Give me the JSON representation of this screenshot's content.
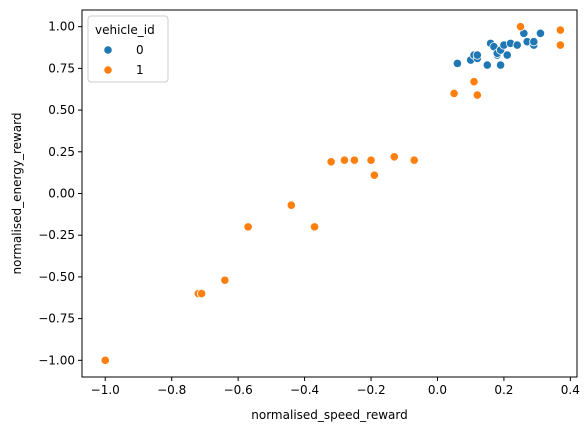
{
  "chart_data": {
    "type": "scatter",
    "title": "",
    "xlabel": "normalised_speed_reward",
    "ylabel": "normalised_energy_reward",
    "xlim": [
      -1.07,
      0.42
    ],
    "ylim": [
      -1.1,
      1.1
    ],
    "x_ticks": [
      -1.0,
      -0.8,
      -0.6,
      -0.4,
      -0.2,
      0.0,
      0.2,
      0.4
    ],
    "x_tick_labels": [
      "−1.0",
      "−0.8",
      "−0.6",
      "−0.4",
      "−0.2",
      "0.0",
      "0.2",
      "0.4"
    ],
    "y_ticks": [
      -1.0,
      -0.75,
      -0.5,
      -0.25,
      0.0,
      0.25,
      0.5,
      0.75,
      1.0
    ],
    "y_tick_labels": [
      "−1.00",
      "−0.75",
      "−0.50",
      "−0.25",
      "0.00",
      "0.25",
      "0.50",
      "0.75",
      "1.00"
    ],
    "grid": false,
    "legend": {
      "title": "vehicle_id",
      "placement": "upper-left"
    },
    "series": [
      {
        "name": "0",
        "color": "#1f77b4",
        "points": [
          [
            0.06,
            0.78
          ],
          [
            0.1,
            0.8
          ],
          [
            0.11,
            0.83
          ],
          [
            0.12,
            0.81
          ],
          [
            0.12,
            0.83
          ],
          [
            0.15,
            0.77
          ],
          [
            0.16,
            0.9
          ],
          [
            0.17,
            0.88
          ],
          [
            0.18,
            0.83
          ],
          [
            0.18,
            0.84
          ],
          [
            0.19,
            0.77
          ],
          [
            0.19,
            0.86
          ],
          [
            0.2,
            0.89
          ],
          [
            0.21,
            0.83
          ],
          [
            0.22,
            0.9
          ],
          [
            0.24,
            0.89
          ],
          [
            0.26,
            0.96
          ],
          [
            0.27,
            0.91
          ],
          [
            0.29,
            0.89
          ],
          [
            0.29,
            0.91
          ],
          [
            0.31,
            0.96
          ]
        ]
      },
      {
        "name": "1",
        "color": "#ff7f0e",
        "points": [
          [
            -1.0,
            -1.0
          ],
          [
            -0.72,
            -0.6
          ],
          [
            -0.71,
            -0.6
          ],
          [
            -0.64,
            -0.52
          ],
          [
            -0.57,
            -0.2
          ],
          [
            -0.44,
            -0.07
          ],
          [
            -0.37,
            -0.2
          ],
          [
            -0.32,
            0.19
          ],
          [
            -0.28,
            0.2
          ],
          [
            -0.25,
            0.2
          ],
          [
            -0.2,
            0.2
          ],
          [
            -0.19,
            0.11
          ],
          [
            -0.13,
            0.22
          ],
          [
            -0.07,
            0.2
          ],
          [
            0.05,
            0.6
          ],
          [
            0.11,
            0.67
          ],
          [
            0.12,
            0.59
          ],
          [
            0.25,
            1.0
          ],
          [
            0.37,
            0.98
          ],
          [
            0.37,
            0.89
          ]
        ]
      }
    ]
  }
}
